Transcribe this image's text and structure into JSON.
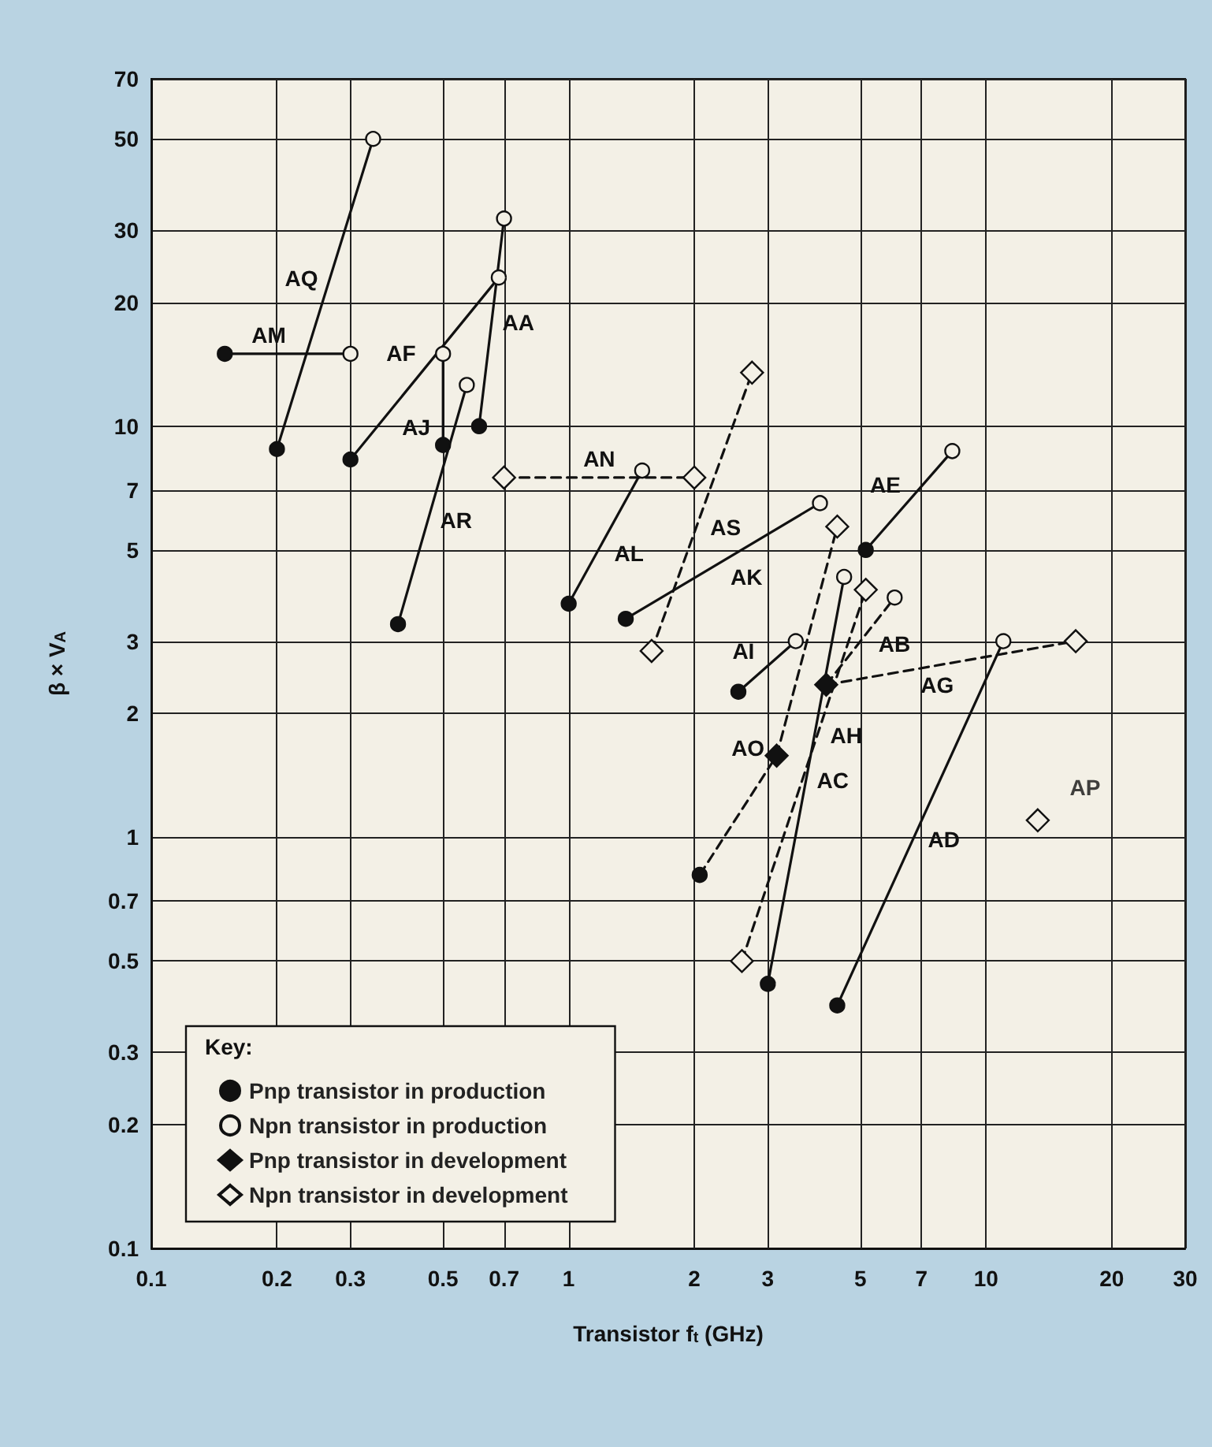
{
  "chart_data": {
    "type": "scatter",
    "xlabel": "Transistor f$_{t}$ (GHz)",
    "ylabel": "β × V$_{A}$",
    "legend_title": "Key:",
    "log": "xy",
    "grid": true,
    "legend": "bottom left",
    "xlim": [
      0.1,
      30
    ],
    "ylim": [
      0.1,
      70
    ],
    "xticks": [
      0.1,
      0.2,
      0.3,
      0.5,
      0.7,
      1,
      2,
      3,
      5,
      7,
      10,
      20,
      30
    ],
    "yticks": [
      0.1,
      0.2,
      0.3,
      0.5,
      0.7,
      1,
      2,
      3,
      5,
      7,
      10,
      20,
      30,
      50,
      70
    ],
    "annotations": [
      {
        "text": "AP",
        "x": 13.3,
        "y": 1.1
      }
    ],
    "series": [
      {
        "name": "AM",
        "type": "line",
        "marker": "none",
        "line_style": "solid",
        "color": "#111111",
        "x": [
          0.15,
          0.3
        ],
        "values": [
          15,
          15
        ]
      },
      {
        "name": "AQ",
        "type": "line",
        "marker": "none",
        "line_style": "solid",
        "color": "#111111",
        "x": [
          0.2,
          0.34
        ],
        "values": [
          8.8,
          50
        ]
      },
      {
        "name": "AF",
        "type": "line",
        "marker": "none",
        "line_style": "solid",
        "color": "#111111",
        "x": [
          0.3,
          0.68
        ],
        "values": [
          8.3,
          23
        ]
      },
      {
        "name": "AJ",
        "type": "line",
        "marker": "none",
        "line_style": "solid",
        "color": "#111111",
        "x": [
          0.5,
          0.5
        ],
        "values": [
          9,
          15
        ]
      },
      {
        "name": "AA",
        "type": "line",
        "marker": "none",
        "line_style": "solid",
        "color": "#111111",
        "x": [
          0.61,
          0.7
        ],
        "values": [
          10,
          32
        ]
      },
      {
        "name": "AR",
        "type": "line",
        "marker": "none",
        "line_style": "solid",
        "color": "#111111",
        "x": [
          0.39,
          0.57
        ],
        "values": [
          3.3,
          12.6
        ]
      },
      {
        "name": "AL",
        "type": "line",
        "marker": "none",
        "line_style": "solid",
        "color": "#111111",
        "x": [
          1,
          1.5
        ],
        "values": [
          3.7,
          7.8
        ]
      },
      {
        "name": "AN",
        "type": "line",
        "marker": "none",
        "line_style": "dashed",
        "color": "#111111",
        "x": [
          0.7,
          2
        ],
        "values": [
          7.5,
          7.5
        ]
      },
      {
        "name": "AS",
        "type": "line",
        "marker": "none",
        "line_style": "dashed",
        "color": "#111111",
        "x": [
          1.58,
          2.75
        ],
        "values": [
          2.84,
          13.5
        ]
      },
      {
        "name": "AK",
        "type": "line",
        "marker": "none",
        "line_style": "solid",
        "color": "#111111",
        "x": [
          1.37,
          4
        ],
        "values": [
          3.4,
          6.5
        ]
      },
      {
        "name": "AI",
        "type": "line",
        "marker": "none",
        "line_style": "solid",
        "color": "#111111",
        "x": [
          2.55,
          3.5
        ],
        "values": [
          2.26,
          3
        ]
      },
      {
        "name": "AE",
        "type": "line",
        "marker": "none",
        "line_style": "solid",
        "color": "#111111",
        "x": [
          5.15,
          8.3
        ],
        "values": [
          5,
          8.7
        ]
      },
      {
        "name": "AO",
        "type": "line",
        "marker": "none",
        "line_style": "dashed",
        "color": "#111111",
        "x": [
          2.06,
          3.15,
          4.4
        ],
        "values": [
          0.81,
          1.58,
          5.7
        ]
      },
      {
        "name": "AB",
        "type": "line",
        "marker": "none",
        "line_style": "dashed",
        "color": "#111111",
        "x": [
          4.14,
          6.04
        ],
        "values": [
          2.35,
          3.83
        ]
      },
      {
        "name": "AH",
        "type": "line",
        "marker": "none",
        "line_style": "dashed",
        "color": "#111111",
        "x": [
          2.6,
          5.15
        ],
        "values": [
          0.5,
          4
        ]
      },
      {
        "name": "AC",
        "type": "line",
        "marker": "none",
        "line_style": "solid",
        "color": "#111111",
        "x": [
          3,
          4.57
        ],
        "values": [
          0.44,
          4.3
        ]
      },
      {
        "name": "AD",
        "type": "line",
        "marker": "none",
        "line_style": "solid",
        "color": "#111111",
        "x": [
          4.4,
          11
        ],
        "values": [
          0.39,
          3
        ]
      },
      {
        "name": "AG",
        "type": "line",
        "marker": "none",
        "line_style": "dashed",
        "color": "#111111",
        "x": [
          4.14,
          16.4
        ],
        "values": [
          2.35,
          3
        ]
      },
      {
        "name": "Pnp transistor in production",
        "marker": "circle",
        "color": "#111111",
        "x": [
          0.15,
          0.2,
          0.3,
          0.5,
          0.61,
          0.39,
          1,
          1.37,
          2.55,
          5.15,
          2.06,
          3,
          4.4
        ],
        "values": [
          15,
          8.8,
          8.3,
          9,
          10,
          3.3,
          3.7,
          3.4,
          2.26,
          5,
          0.81,
          0.44,
          0.39
        ]
      },
      {
        "name": "Npn transistor in production",
        "marker": "circle",
        "color": "#f3f0e6",
        "x": [
          0.3,
          0.34,
          0.68,
          0.5,
          0.7,
          0.57,
          1.5,
          4,
          3.5,
          8.3,
          6.04,
          4.57,
          11
        ],
        "values": [
          15,
          50,
          23,
          15,
          32,
          12.6,
          7.8,
          6.5,
          3,
          8.7,
          3.83,
          4.3,
          3
        ]
      },
      {
        "name": "Pnp transistor in development",
        "marker": "diamond",
        "color": "#111111",
        "x": [
          3.15,
          4.14
        ],
        "values": [
          1.58,
          2.35
        ]
      },
      {
        "name": "Npn transistor in development",
        "marker": "diamond",
        "color": "#f3f0e6",
        "x": [
          0.7,
          2,
          1.58,
          2.75,
          4.4,
          5.15,
          2.6,
          16.4,
          13.3
        ],
        "values": [
          7.5,
          7.5,
          2.84,
          13.5,
          5.7,
          4,
          0.5,
          3,
          1.1
        ]
      }
    ]
  }
}
